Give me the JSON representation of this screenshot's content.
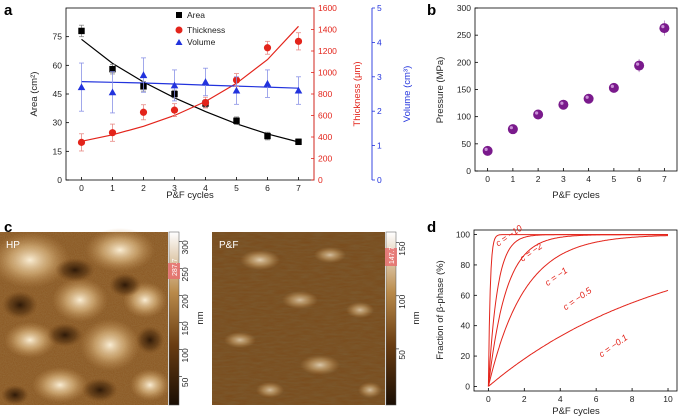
{
  "panels": {
    "a": "a",
    "b": "b",
    "c": "c",
    "d": "d"
  },
  "chart_data": [
    {
      "panel": "a",
      "type": "scatter",
      "xlabel": "P&F cycles",
      "x": [
        0,
        1,
        2,
        3,
        4,
        5,
        6,
        7
      ],
      "xlim": [
        -0.5,
        7.5
      ],
      "xticks": [
        0,
        1,
        2,
        3,
        4,
        5,
        6,
        7
      ],
      "axes": {
        "left": {
          "label": "Area (cm²)",
          "lim": [
            0,
            90
          ],
          "ticks": [
            0,
            15,
            30,
            45,
            60,
            75
          ],
          "color": "#000000"
        },
        "right1": {
          "label": "Thickness (μm)",
          "lim": [
            0,
            1600
          ],
          "ticks": [
            0,
            200,
            400,
            600,
            800,
            1000,
            1200,
            1400,
            1600
          ],
          "color": "#e3241b"
        },
        "right2": {
          "label": "Volume (cm³)",
          "lim": [
            0,
            5
          ],
          "ticks": [
            0,
            1,
            2,
            3,
            4,
            5
          ],
          "color": "#2233dd"
        }
      },
      "series": [
        {
          "name": "Area",
          "axis": "left",
          "marker": "square",
          "color": "#000000",
          "values": [
            78,
            58,
            49,
            45,
            40,
            31,
            23,
            20
          ],
          "errors": [
            3,
            2.5,
            2.5,
            2,
            2,
            2,
            2,
            1.5
          ],
          "fit": [
            73.6,
            61.0,
            51.3,
            43.0,
            35.8,
            29.4,
            24.1,
            19.9
          ]
        },
        {
          "name": "Thickness",
          "axis": "right1",
          "marker": "circle",
          "color": "#e3241b",
          "values": [
            350,
            440,
            630,
            650,
            720,
            930,
            1230,
            1290
          ],
          "errors": [
            80,
            80,
            70,
            60,
            50,
            60,
            60,
            80
          ],
          "fit": [
            360,
            420,
            500,
            600,
            730,
            900,
            1120,
            1430
          ]
        },
        {
          "name": "Volume",
          "axis": "right2",
          "marker": "triangle",
          "color": "#2233dd",
          "values": [
            2.7,
            2.55,
            3.05,
            2.75,
            2.85,
            2.6,
            2.8,
            2.6
          ],
          "errors": [
            0.7,
            0.6,
            0.5,
            0.45,
            0.4,
            0.4,
            0.4,
            0.4
          ],
          "fit": [
            2.86,
            2.84,
            2.82,
            2.79,
            2.76,
            2.73,
            2.7,
            2.67
          ]
        }
      ]
    },
    {
      "panel": "b",
      "type": "scatter",
      "xlabel": "P&F cycles",
      "ylabel": "Pressure (MPa)",
      "x": [
        0,
        1,
        2,
        3,
        4,
        5,
        6,
        7
      ],
      "values": [
        37,
        77,
        104,
        122,
        133,
        153,
        194,
        263
      ],
      "errors": [
        4,
        5,
        5,
        5,
        5,
        6,
        12,
        14
      ],
      "xlim": [
        -0.5,
        7.5
      ],
      "ylim": [
        0,
        300
      ],
      "xticks": [
        0,
        1,
        2,
        3,
        4,
        5,
        6,
        7
      ],
      "yticks": [
        0,
        50,
        100,
        150,
        200,
        250,
        300
      ],
      "color": "#7a1a8c"
    },
    {
      "panel": "d",
      "type": "line",
      "xlabel": "P&F cycles",
      "ylabel": "Fraction of β-phase (%)",
      "xlim": [
        -0.8,
        10.5
      ],
      "ylim": [
        -3,
        103
      ],
      "xticks": [
        0,
        2,
        4,
        6,
        8,
        10
      ],
      "yticks": [
        0,
        20,
        40,
        60,
        80,
        100
      ],
      "series": [
        {
          "name": "c = −10",
          "c": -10
        },
        {
          "name": "c = −2",
          "c": -2
        },
        {
          "name": "c = −1",
          "c": -1
        },
        {
          "name": "c = −0.5",
          "c": -0.5
        },
        {
          "name": "c = −0.1",
          "c": -0.1
        }
      ],
      "color": "#e3241b"
    }
  ],
  "afm": {
    "left": {
      "label": "HP",
      "scale_unit": "nm",
      "ticks": [
        50,
        100,
        150,
        200,
        250,
        300
      ],
      "marker": "287.7"
    },
    "right": {
      "label": "P&F",
      "scale_unit": "nm",
      "ticks": [
        50,
        100,
        150
      ],
      "marker": "147.7"
    }
  }
}
